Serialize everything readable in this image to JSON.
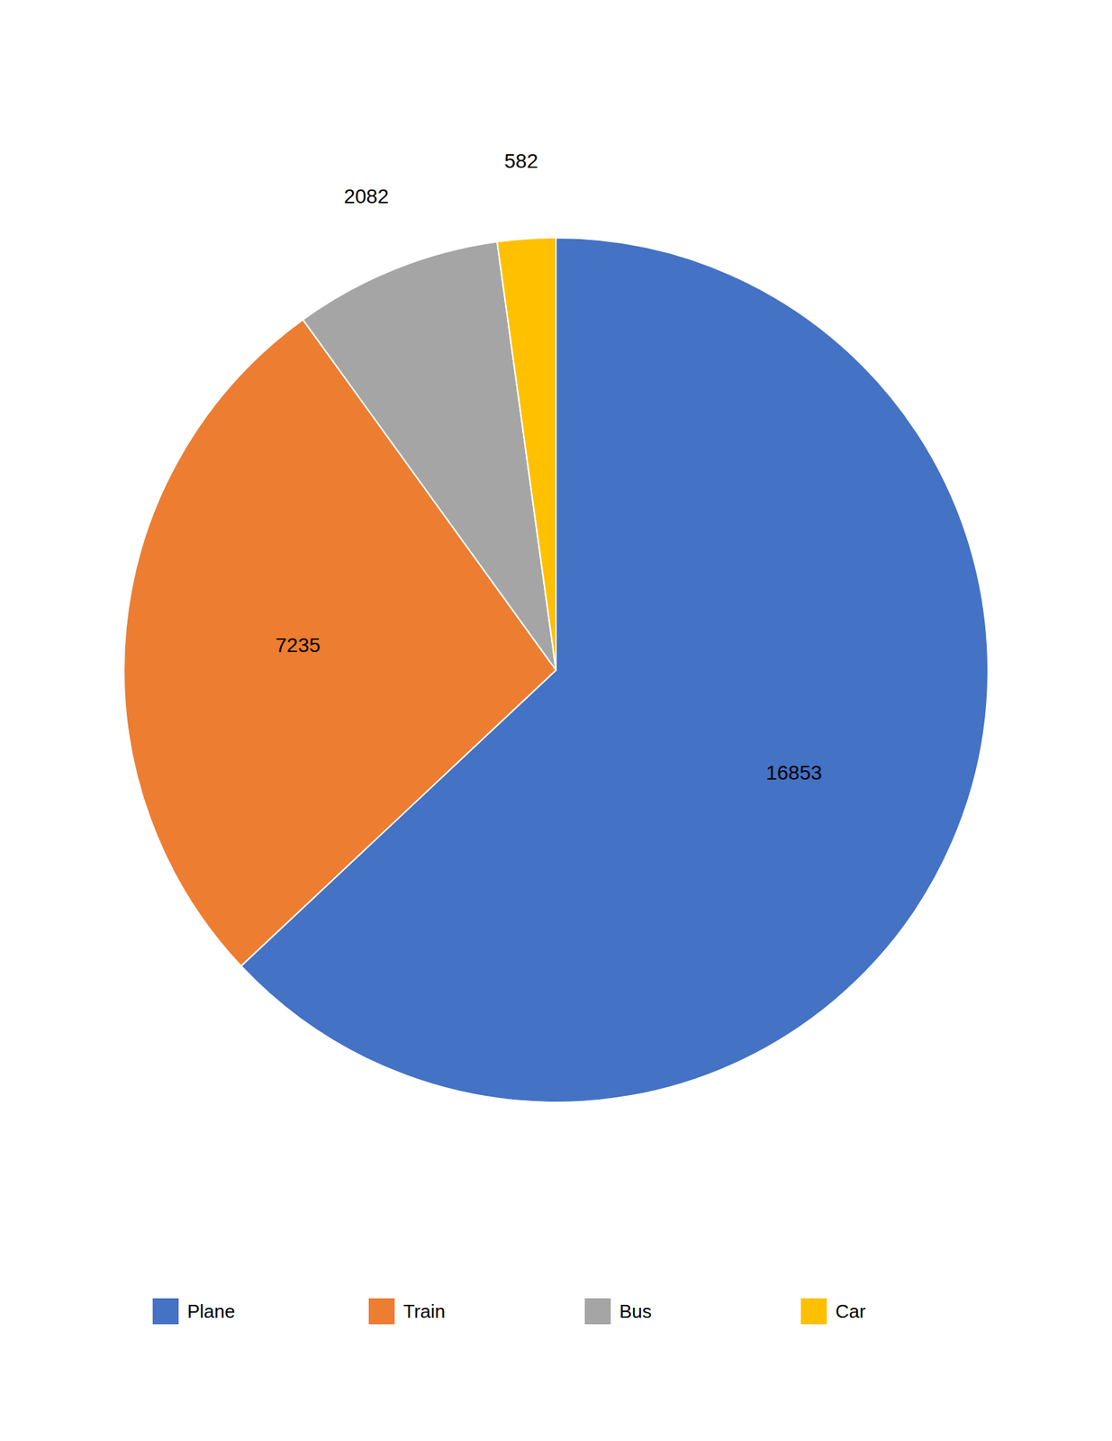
{
  "chart_data": {
    "type": "pie",
    "categories": [
      "Plane",
      "Train",
      "Bus",
      "Car"
    ],
    "values": [
      16853,
      7235,
      2082,
      582
    ],
    "colors": [
      "#4472C4",
      "#ED7D31",
      "#A5A5A5",
      "#FFC000"
    ],
    "data_labels": true,
    "legend": "bottom"
  }
}
